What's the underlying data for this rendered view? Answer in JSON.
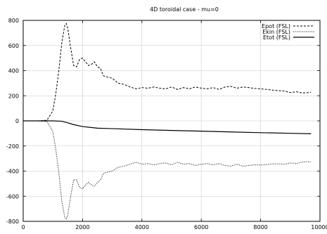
{
  "chart_data": {
    "type": "line",
    "title": "4D toroidal case - mu=0",
    "xlabel": "",
    "ylabel": "",
    "xlim": [
      0,
      10000
    ],
    "ylim": [
      -800,
      800
    ],
    "x_ticks": [
      0,
      2000,
      4000,
      6000,
      8000,
      10000
    ],
    "y_ticks": [
      -800,
      -600,
      -400,
      -200,
      0,
      200,
      400,
      600,
      800
    ],
    "grid": true,
    "legend_position": "top-right",
    "series": [
      {
        "name": "Epot (FSL)",
        "style": "dashed",
        "color": "#000000",
        "points": [
          [
            0,
            0
          ],
          [
            500,
            0
          ],
          [
            800,
            5
          ],
          [
            1000,
            80
          ],
          [
            1100,
            220
          ],
          [
            1200,
            400
          ],
          [
            1300,
            620
          ],
          [
            1400,
            760
          ],
          [
            1450,
            775
          ],
          [
            1500,
            740
          ],
          [
            1600,
            580
          ],
          [
            1700,
            440
          ],
          [
            1800,
            430
          ],
          [
            1900,
            490
          ],
          [
            2000,
            500
          ],
          [
            2100,
            470
          ],
          [
            2200,
            440
          ],
          [
            2300,
            450
          ],
          [
            2400,
            470
          ],
          [
            2500,
            430
          ],
          [
            2600,
            420
          ],
          [
            2700,
            360
          ],
          [
            2800,
            350
          ],
          [
            3000,
            340
          ],
          [
            3200,
            300
          ],
          [
            3400,
            290
          ],
          [
            3600,
            270
          ],
          [
            3800,
            255
          ],
          [
            4000,
            265
          ],
          [
            4200,
            260
          ],
          [
            4400,
            270
          ],
          [
            4600,
            260
          ],
          [
            4800,
            255
          ],
          [
            5000,
            270
          ],
          [
            5200,
            250
          ],
          [
            5400,
            265
          ],
          [
            5600,
            255
          ],
          [
            5800,
            270
          ],
          [
            6000,
            260
          ],
          [
            6200,
            255
          ],
          [
            6400,
            265
          ],
          [
            6600,
            250
          ],
          [
            6800,
            270
          ],
          [
            7000,
            275
          ],
          [
            7200,
            260
          ],
          [
            7400,
            270
          ],
          [
            7600,
            265
          ],
          [
            7800,
            258
          ],
          [
            8000,
            255
          ],
          [
            8200,
            250
          ],
          [
            8400,
            245
          ],
          [
            8600,
            240
          ],
          [
            8800,
            238
          ],
          [
            9000,
            225
          ],
          [
            9200,
            232
          ],
          [
            9400,
            222
          ],
          [
            9600,
            225
          ],
          [
            9700,
            228
          ]
        ]
      },
      {
        "name": "Ekin (FSL)",
        "style": "dotted",
        "color": "#000000",
        "points": [
          [
            0,
            0
          ],
          [
            500,
            0
          ],
          [
            800,
            -5
          ],
          [
            1000,
            -85
          ],
          [
            1100,
            -230
          ],
          [
            1200,
            -410
          ],
          [
            1300,
            -640
          ],
          [
            1400,
            -770
          ],
          [
            1450,
            -780
          ],
          [
            1500,
            -750
          ],
          [
            1600,
            -600
          ],
          [
            1700,
            -470
          ],
          [
            1800,
            -470
          ],
          [
            1900,
            -530
          ],
          [
            2000,
            -540
          ],
          [
            2100,
            -510
          ],
          [
            2200,
            -490
          ],
          [
            2300,
            -510
          ],
          [
            2400,
            -520
          ],
          [
            2500,
            -490
          ],
          [
            2600,
            -470
          ],
          [
            2700,
            -420
          ],
          [
            2800,
            -410
          ],
          [
            3000,
            -400
          ],
          [
            3200,
            -370
          ],
          [
            3400,
            -360
          ],
          [
            3600,
            -345
          ],
          [
            3800,
            -330
          ],
          [
            4000,
            -345
          ],
          [
            4200,
            -340
          ],
          [
            4400,
            -350
          ],
          [
            4600,
            -340
          ],
          [
            4800,
            -335
          ],
          [
            5000,
            -350
          ],
          [
            5200,
            -330
          ],
          [
            5400,
            -345
          ],
          [
            5600,
            -340
          ],
          [
            5800,
            -355
          ],
          [
            6000,
            -345
          ],
          [
            6200,
            -340
          ],
          [
            6400,
            -350
          ],
          [
            6600,
            -340
          ],
          [
            6800,
            -355
          ],
          [
            7000,
            -360
          ],
          [
            7200,
            -345
          ],
          [
            7400,
            -360
          ],
          [
            7600,
            -355
          ],
          [
            7800,
            -350
          ],
          [
            8000,
            -352
          ],
          [
            8200,
            -348
          ],
          [
            8400,
            -343
          ],
          [
            8600,
            -342
          ],
          [
            8800,
            -345
          ],
          [
            9000,
            -335
          ],
          [
            9200,
            -340
          ],
          [
            9400,
            -328
          ],
          [
            9600,
            -325
          ],
          [
            9700,
            -330
          ]
        ]
      },
      {
        "name": "Etot (FSL)",
        "style": "solid",
        "color": "#000000",
        "points": [
          [
            0,
            0
          ],
          [
            1000,
            0
          ],
          [
            1300,
            -3
          ],
          [
            1500,
            -15
          ],
          [
            1700,
            -30
          ],
          [
            2000,
            -45
          ],
          [
            2500,
            -58
          ],
          [
            3000,
            -62
          ],
          [
            4000,
            -70
          ],
          [
            5000,
            -76
          ],
          [
            6000,
            -82
          ],
          [
            7000,
            -88
          ],
          [
            8000,
            -94
          ],
          [
            9000,
            -99
          ],
          [
            9700,
            -103
          ]
        ]
      }
    ]
  }
}
